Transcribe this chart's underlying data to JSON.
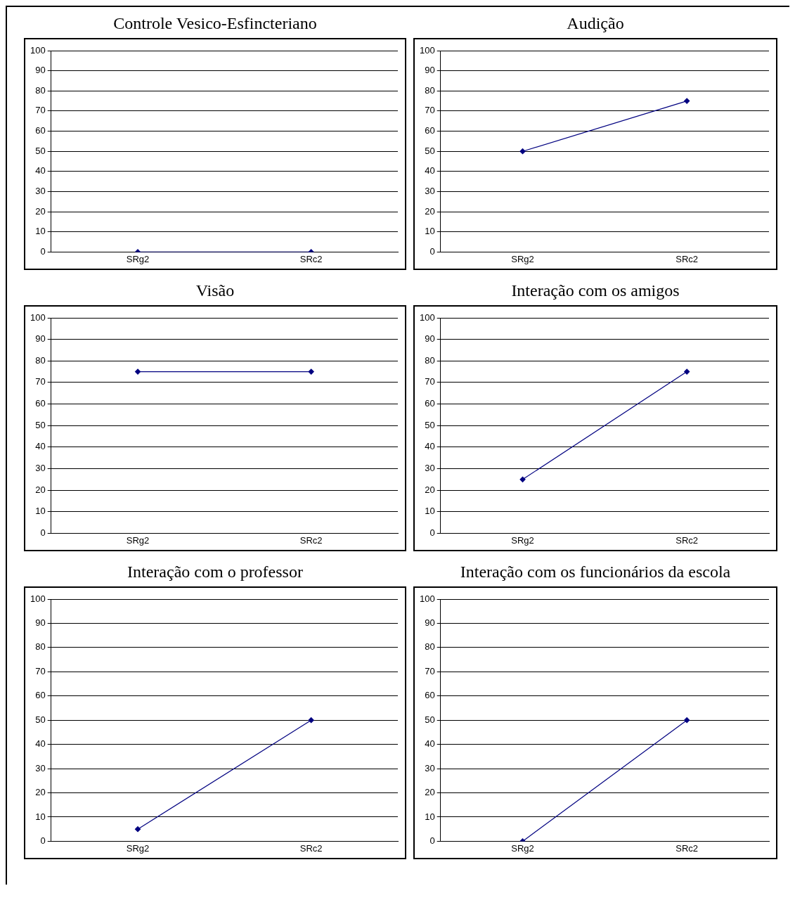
{
  "chart_data": [
    {
      "type": "line",
      "title": "Controle Vesico-Esfincteriano",
      "categories": [
        "SRg2",
        "SRc2"
      ],
      "series": [
        {
          "color": "#000080",
          "values": [
            0,
            0
          ]
        }
      ],
      "ylim": [
        0,
        100
      ],
      "yticks": [
        0,
        10,
        20,
        30,
        40,
        50,
        60,
        70,
        80,
        90,
        100
      ],
      "grid": "y",
      "marker": "diamond",
      "legend": false
    },
    {
      "type": "line",
      "title": "Audição",
      "categories": [
        "SRg2",
        "SRc2"
      ],
      "series": [
        {
          "color": "#000080",
          "values": [
            50,
            75
          ]
        }
      ],
      "ylim": [
        0,
        100
      ],
      "yticks": [
        0,
        10,
        20,
        30,
        40,
        50,
        60,
        70,
        80,
        90,
        100
      ],
      "grid": "y",
      "marker": "diamond",
      "legend": false
    },
    {
      "type": "line",
      "title": "Visão",
      "categories": [
        "SRg2",
        "SRc2"
      ],
      "series": [
        {
          "color": "#000080",
          "values": [
            75,
            75
          ]
        }
      ],
      "ylim": [
        0,
        100
      ],
      "yticks": [
        0,
        10,
        20,
        30,
        40,
        50,
        60,
        70,
        80,
        90,
        100
      ],
      "grid": "y",
      "marker": "diamond",
      "legend": false
    },
    {
      "type": "line",
      "title": "Interação com os amigos",
      "categories": [
        "SRg2",
        "SRc2"
      ],
      "series": [
        {
          "color": "#000080",
          "values": [
            25,
            75
          ]
        }
      ],
      "ylim": [
        0,
        100
      ],
      "yticks": [
        0,
        10,
        20,
        30,
        40,
        50,
        60,
        70,
        80,
        90,
        100
      ],
      "grid": "y",
      "marker": "diamond",
      "legend": false
    },
    {
      "type": "line",
      "title": "Interação com o professor",
      "categories": [
        "SRg2",
        "SRc2"
      ],
      "series": [
        {
          "color": "#000080",
          "values": [
            5,
            50
          ]
        }
      ],
      "ylim": [
        0,
        100
      ],
      "yticks": [
        0,
        10,
        20,
        30,
        40,
        50,
        60,
        70,
        80,
        90,
        100
      ],
      "grid": "y",
      "marker": "diamond",
      "legend": false
    },
    {
      "type": "line",
      "title": "Interação com os funcionários da escola",
      "categories": [
        "SRg2",
        "SRc2"
      ],
      "series": [
        {
          "color": "#000080",
          "values": [
            0,
            50
          ]
        }
      ],
      "ylim": [
        0,
        100
      ],
      "yticks": [
        0,
        10,
        20,
        30,
        40,
        50,
        60,
        70,
        80,
        90,
        100
      ],
      "grid": "y",
      "marker": "diamond",
      "legend": false
    }
  ]
}
